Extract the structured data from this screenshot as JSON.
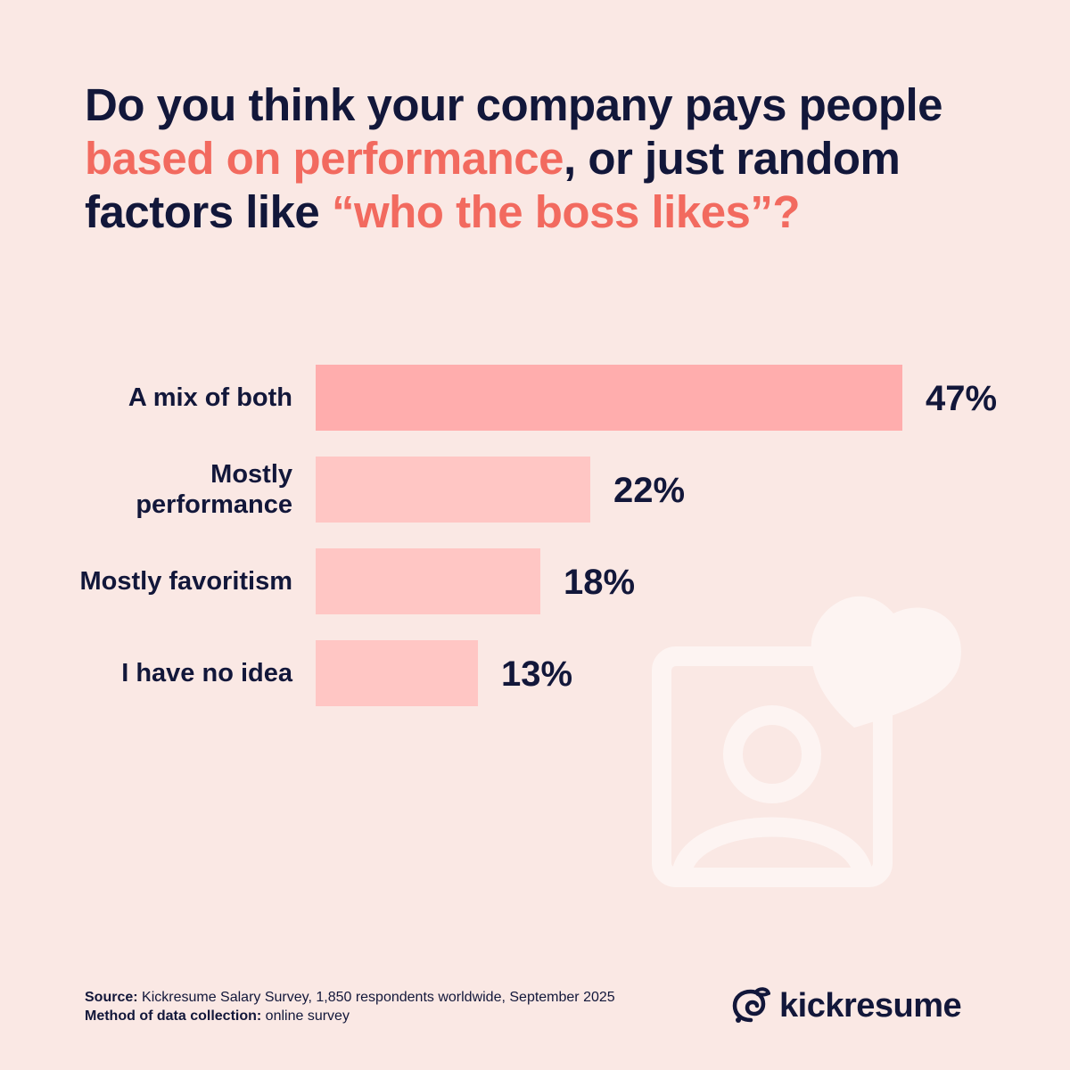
{
  "title": {
    "p1": "Do you think your company pays people ",
    "p2": "based on performance",
    "p3": ", or just random factors like ",
    "p4": "“who the boss likes”?"
  },
  "chart_data": {
    "type": "bar",
    "orientation": "horizontal",
    "categories": [
      "A mix of both",
      "Mostly performance",
      "Mostly favoritism",
      "I have no idea"
    ],
    "values": [
      47,
      22,
      18,
      13
    ],
    "value_labels": [
      "47%",
      "22%",
      "18%",
      "13%"
    ],
    "unit": "%",
    "xlim": [
      0,
      47
    ],
    "grid": false,
    "colors": {
      "highlight": "#FFADAD",
      "default": "#FFC6C4"
    }
  },
  "footer": {
    "source_label": "Source:",
    "source_text": " Kickresume Salary Survey, 1,850 respondents worldwide, September 2025",
    "method_label": "Method of data collection:",
    "method_text": " online survey"
  },
  "brand": {
    "name": "kickresume",
    "icon": "kickresume-logo-icon"
  },
  "decor": {
    "icon": "user-portrait-heart-icon"
  },
  "colors": {
    "background": "#FAE8E4",
    "text": "#12173A",
    "accent": "#F26A5F"
  }
}
